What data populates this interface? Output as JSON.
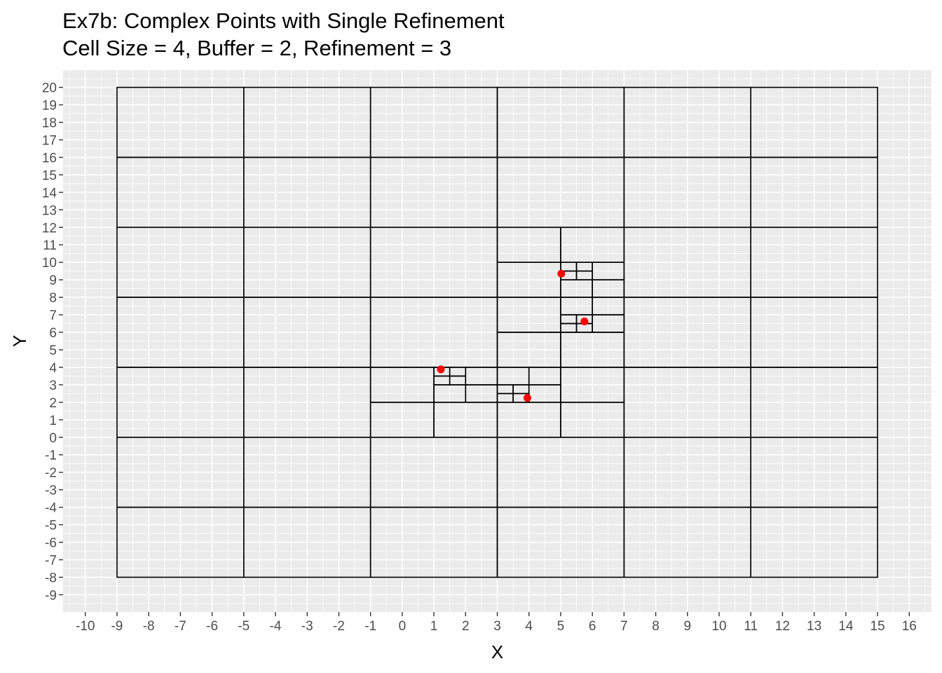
{
  "chart_data": {
    "type": "scatter",
    "title": "Ex7b: Complex Points with Single Refinement",
    "subtitle": "Cell Size = 4, Buffer = 2, Refinement = 3",
    "xlabel": "X",
    "ylabel": "Y",
    "xlim": [
      -10,
      16
    ],
    "ylim": [
      -9,
      20
    ],
    "x_ticks": [
      -10,
      -9,
      -8,
      -7,
      -6,
      -5,
      -4,
      -3,
      -2,
      -1,
      0,
      1,
      2,
      3,
      4,
      5,
      6,
      7,
      8,
      9,
      10,
      11,
      12,
      13,
      14,
      15,
      16
    ],
    "y_ticks": [
      -9,
      -8,
      -7,
      -6,
      -5,
      -4,
      -3,
      -2,
      -1,
      0,
      1,
      2,
      3,
      4,
      5,
      6,
      7,
      8,
      9,
      10,
      11,
      12,
      13,
      14,
      15,
      16,
      17,
      18,
      19,
      20
    ],
    "grid": true,
    "minor_grid_step": 0.5,
    "legend": "none",
    "colors": {
      "panel_background": "#ebebeb",
      "grid_line": "#ffffff",
      "cell_outline": "#000000",
      "point": "#ff0000",
      "tick_label": "#4d4d4d"
    },
    "points": [
      {
        "x": 1.22,
        "y": 3.88
      },
      {
        "x": 3.95,
        "y": 2.25
      },
      {
        "x": 5.02,
        "y": 9.35
      },
      {
        "x": 5.75,
        "y": 6.62
      }
    ],
    "cells": [
      {
        "x0": -9,
        "y0": -8,
        "x1": -5,
        "y1": -4
      },
      {
        "x0": -5,
        "y0": -8,
        "x1": -1,
        "y1": -4
      },
      {
        "x0": -1,
        "y0": -8,
        "x1": 3,
        "y1": -4
      },
      {
        "x0": 3,
        "y0": -8,
        "x1": 7,
        "y1": -4
      },
      {
        "x0": 7,
        "y0": -8,
        "x1": 11,
        "y1": -4
      },
      {
        "x0": 11,
        "y0": -8,
        "x1": 15,
        "y1": -4
      },
      {
        "x0": -9,
        "y0": -4,
        "x1": -5,
        "y1": 0
      },
      {
        "x0": -5,
        "y0": -4,
        "x1": -1,
        "y1": 0
      },
      {
        "x0": -1,
        "y0": -4,
        "x1": 3,
        "y1": 0
      },
      {
        "x0": 3,
        "y0": -4,
        "x1": 7,
        "y1": 0
      },
      {
        "x0": 7,
        "y0": -4,
        "x1": 11,
        "y1": 0
      },
      {
        "x0": 11,
        "y0": -4,
        "x1": 15,
        "y1": 0
      },
      {
        "x0": -9,
        "y0": 0,
        "x1": -5,
        "y1": 4
      },
      {
        "x0": -5,
        "y0": 0,
        "x1": -1,
        "y1": 4
      },
      {
        "x0": 7,
        "y0": 0,
        "x1": 11,
        "y1": 4
      },
      {
        "x0": 11,
        "y0": 0,
        "x1": 15,
        "y1": 4
      },
      {
        "x0": -9,
        "y0": 4,
        "x1": -5,
        "y1": 8
      },
      {
        "x0": -5,
        "y0": 4,
        "x1": -1,
        "y1": 8
      },
      {
        "x0": -1,
        "y0": 4,
        "x1": 3,
        "y1": 8
      },
      {
        "x0": 7,
        "y0": 4,
        "x1": 11,
        "y1": 8
      },
      {
        "x0": 11,
        "y0": 4,
        "x1": 15,
        "y1": 8
      },
      {
        "x0": -9,
        "y0": 8,
        "x1": -5,
        "y1": 12
      },
      {
        "x0": -5,
        "y0": 8,
        "x1": -1,
        "y1": 12
      },
      {
        "x0": -1,
        "y0": 8,
        "x1": 3,
        "y1": 12
      },
      {
        "x0": 7,
        "y0": 8,
        "x1": 11,
        "y1": 12
      },
      {
        "x0": 11,
        "y0": 8,
        "x1": 15,
        "y1": 12
      },
      {
        "x0": -9,
        "y0": 12,
        "x1": -5,
        "y1": 16
      },
      {
        "x0": -5,
        "y0": 12,
        "x1": -1,
        "y1": 16
      },
      {
        "x0": -1,
        "y0": 12,
        "x1": 3,
        "y1": 16
      },
      {
        "x0": 3,
        "y0": 12,
        "x1": 7,
        "y1": 16
      },
      {
        "x0": 7,
        "y0": 12,
        "x1": 11,
        "y1": 16
      },
      {
        "x0": 11,
        "y0": 12,
        "x1": 15,
        "y1": 16
      },
      {
        "x0": -9,
        "y0": 16,
        "x1": -5,
        "y1": 20
      },
      {
        "x0": -5,
        "y0": 16,
        "x1": -1,
        "y1": 20
      },
      {
        "x0": -1,
        "y0": 16,
        "x1": 3,
        "y1": 20
      },
      {
        "x0": 3,
        "y0": 16,
        "x1": 7,
        "y1": 20
      },
      {
        "x0": 7,
        "y0": 16,
        "x1": 11,
        "y1": 20
      },
      {
        "x0": 11,
        "y0": 16,
        "x1": 15,
        "y1": 20
      },
      {
        "x0": -1,
        "y0": 0,
        "x1": 1,
        "y1": 2
      },
      {
        "x0": -1,
        "y0": 2,
        "x1": 1,
        "y1": 4
      },
      {
        "x0": 1,
        "y0": 0,
        "x1": 3,
        "y1": 2
      },
      {
        "x0": 2,
        "y0": 2,
        "x1": 3,
        "y1": 3
      },
      {
        "x0": 1,
        "y0": 2,
        "x1": 2,
        "y1": 3
      },
      {
        "x0": 1,
        "y0": 3,
        "x1": 1.5,
        "y1": 3.5
      },
      {
        "x0": 1.5,
        "y0": 3,
        "x1": 2,
        "y1": 3.5
      },
      {
        "x0": 1,
        "y0": 3.5,
        "x1": 1.5,
        "y1": 4
      },
      {
        "x0": 1.5,
        "y0": 3.5,
        "x1": 2,
        "y1": 4
      },
      {
        "x0": 2,
        "y0": 3,
        "x1": 3,
        "y1": 4
      },
      {
        "x0": 3,
        "y0": 0,
        "x1": 5,
        "y1": 2
      },
      {
        "x0": 5,
        "y0": 0,
        "x1": 7,
        "y1": 2
      },
      {
        "x0": 3,
        "y0": 2,
        "x1": 3.5,
        "y1": 2.5
      },
      {
        "x0": 3.5,
        "y0": 2,
        "x1": 4,
        "y1": 2.5
      },
      {
        "x0": 3,
        "y0": 2.5,
        "x1": 3.5,
        "y1": 3
      },
      {
        "x0": 3.5,
        "y0": 2.5,
        "x1": 4,
        "y1": 3
      },
      {
        "x0": 4,
        "y0": 2,
        "x1": 5,
        "y1": 3
      },
      {
        "x0": 3,
        "y0": 3,
        "x1": 4,
        "y1": 4
      },
      {
        "x0": 4,
        "y0": 3,
        "x1": 5,
        "y1": 4
      },
      {
        "x0": 5,
        "y0": 2,
        "x1": 7,
        "y1": 4
      },
      {
        "x0": 3,
        "y0": 4,
        "x1": 5,
        "y1": 6
      },
      {
        "x0": 5,
        "y0": 4,
        "x1": 7,
        "y1": 6
      },
      {
        "x0": 3,
        "y0": 6,
        "x1": 5,
        "y1": 8
      },
      {
        "x0": 5,
        "y0": 6,
        "x1": 5.5,
        "y1": 6.5
      },
      {
        "x0": 5.5,
        "y0": 6,
        "x1": 6,
        "y1": 6.5
      },
      {
        "x0": 5,
        "y0": 6.5,
        "x1": 5.5,
        "y1": 7
      },
      {
        "x0": 5.5,
        "y0": 6.5,
        "x1": 6,
        "y1": 7
      },
      {
        "x0": 6,
        "y0": 6,
        "x1": 7,
        "y1": 7
      },
      {
        "x0": 5,
        "y0": 7,
        "x1": 6,
        "y1": 8
      },
      {
        "x0": 6,
        "y0": 7,
        "x1": 7,
        "y1": 8
      },
      {
        "x0": 3,
        "y0": 8,
        "x1": 5,
        "y1": 10
      },
      {
        "x0": 5,
        "y0": 8,
        "x1": 6,
        "y1": 9
      },
      {
        "x0": 6,
        "y0": 8,
        "x1": 7,
        "y1": 9
      },
      {
        "x0": 5,
        "y0": 9,
        "x1": 5.5,
        "y1": 9.5
      },
      {
        "x0": 5.5,
        "y0": 9,
        "x1": 6,
        "y1": 9.5
      },
      {
        "x0": 5,
        "y0": 9.5,
        "x1": 5.5,
        "y1": 10
      },
      {
        "x0": 5.5,
        "y0": 9.5,
        "x1": 6,
        "y1": 10
      },
      {
        "x0": 6,
        "y0": 9,
        "x1": 7,
        "y1": 10
      },
      {
        "x0": 3,
        "y0": 10,
        "x1": 5,
        "y1": 12
      },
      {
        "x0": 5,
        "y0": 10,
        "x1": 7,
        "y1": 12
      }
    ]
  }
}
